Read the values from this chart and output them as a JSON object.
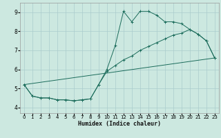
{
  "xlabel": "Humidex (Indice chaleur)",
  "ylabel": "",
  "background_color": "#cce8e0",
  "grid_color": "#aacccc",
  "line_color": "#1a6b5a",
  "xlim": [
    -0.5,
    23.5
  ],
  "ylim": [
    3.7,
    9.5
  ],
  "xticks": [
    0,
    1,
    2,
    3,
    4,
    5,
    6,
    7,
    8,
    9,
    10,
    11,
    12,
    13,
    14,
    15,
    16,
    17,
    18,
    19,
    20,
    21,
    22,
    23
  ],
  "yticks": [
    4,
    5,
    6,
    7,
    8,
    9
  ],
  "line1_x": [
    0,
    1,
    2,
    3,
    4,
    5,
    6,
    7,
    8,
    9,
    10,
    11,
    12,
    13,
    14,
    15,
    16,
    17,
    18,
    19,
    20,
    21,
    22,
    23
  ],
  "line1_y": [
    5.2,
    4.6,
    4.5,
    4.5,
    4.4,
    4.4,
    4.35,
    4.4,
    4.45,
    5.2,
    6.0,
    7.25,
    9.05,
    8.5,
    9.05,
    9.05,
    8.85,
    8.5,
    8.5,
    8.4,
    8.1,
    7.85,
    7.5,
    6.6
  ],
  "line2_x": [
    0,
    1,
    2,
    3,
    4,
    5,
    6,
    7,
    8,
    9,
    10,
    11,
    12,
    13,
    14,
    15,
    16,
    17,
    18,
    19,
    20,
    21,
    22,
    23
  ],
  "line2_y": [
    5.2,
    4.6,
    4.5,
    4.5,
    4.4,
    4.4,
    4.35,
    4.4,
    4.45,
    5.2,
    5.9,
    6.2,
    6.5,
    6.7,
    7.0,
    7.2,
    7.4,
    7.6,
    7.8,
    7.9,
    8.1,
    7.85,
    7.5,
    6.6
  ],
  "line3_x": [
    0,
    23
  ],
  "line3_y": [
    5.2,
    6.6
  ]
}
